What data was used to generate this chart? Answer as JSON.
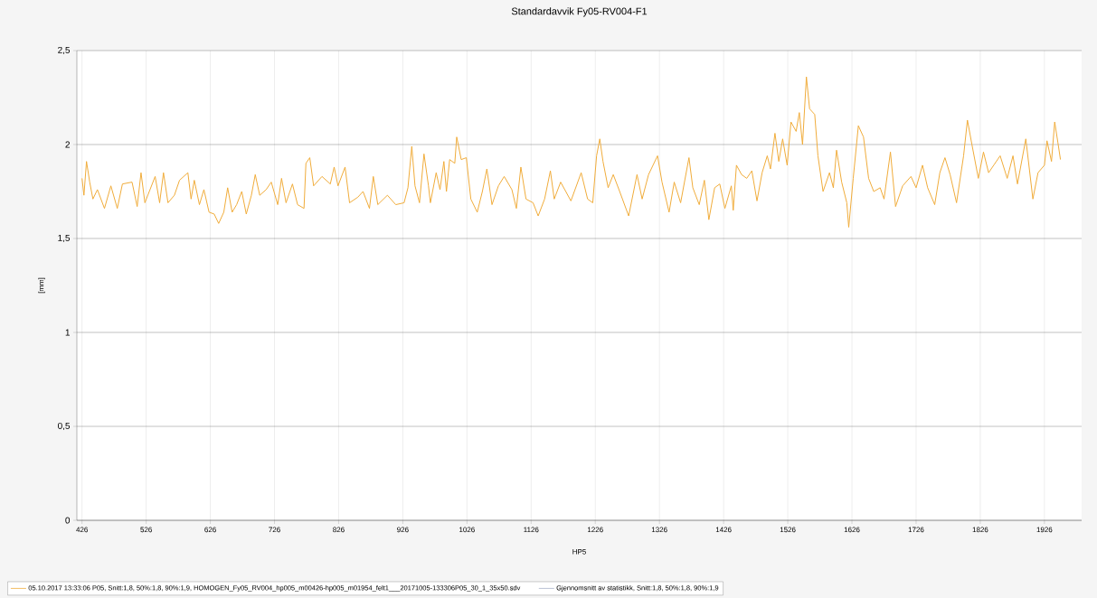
{
  "chart_data": {
    "type": "line",
    "title": "Standardavvik Fy05-RV004-F1",
    "xlabel": "HP5",
    "ylabel": "[mm]",
    "xlim": [
      418,
      1984
    ],
    "ylim": [
      0,
      2.5
    ],
    "xticks": [
      426,
      526,
      626,
      726,
      826,
      926,
      1026,
      1126,
      1226,
      1326,
      1426,
      1526,
      1626,
      1726,
      1826,
      1926
    ],
    "yticks": [
      {
        "value": 0,
        "label": "0"
      },
      {
        "value": 0.5,
        "label": "0,5"
      },
      {
        "value": 1,
        "label": "1"
      },
      {
        "value": 1.5,
        "label": "1,5"
      },
      {
        "value": 2,
        "label": "2"
      },
      {
        "value": 2.5,
        "label": "2,5"
      }
    ],
    "grid": true,
    "legend": "bottom",
    "marker": "none",
    "line_style": "solid",
    "series": [
      {
        "name": "05.10.2017 13:33:06 P05, Snitt:1,8, 50%:1,8, 90%:1,9, HOMOGEN_Fy05_RV004_hp005_m00426-hp005_m01954_felt1___20171005-133306P05_30_1_35x50.sdv",
        "color": "#f0ac3a",
        "x": [
          426,
          429,
          433,
          438,
          443,
          450,
          461,
          471,
          481,
          489,
          504,
          512,
          518,
          524,
          540,
          547,
          553,
          560,
          570,
          578,
          591,
          596,
          601,
          609,
          616,
          624,
          632,
          639,
          647,
          653,
          660,
          667,
          675,
          682,
          690,
          696,
          703,
          713,
          721,
          731,
          737,
          744,
          754,
          762,
          772,
          775,
          781,
          787,
          800,
          813,
          819,
          825,
          836,
          843,
          856,
          864,
          874,
          880,
          887,
          902,
          915,
          928,
          934,
          940,
          945,
          952,
          959,
          966,
          969,
          978,
          984,
          990,
          994,
          999,
          1007,
          1010,
          1017,
          1025,
          1032,
          1042,
          1050,
          1057,
          1065,
          1075,
          1084,
          1096,
          1103,
          1110,
          1118,
          1129,
          1137,
          1147,
          1156,
          1162,
          1172,
          1188,
          1204,
          1214,
          1222,
          1228,
          1233,
          1238,
          1246,
          1254,
          1264,
          1278,
          1291,
          1299,
          1309,
          1323,
          1330,
          1341,
          1349,
          1359,
          1372,
          1378,
          1388,
          1396,
          1403,
          1412,
          1420,
          1428,
          1438,
          1441,
          1446,
          1454,
          1462,
          1470,
          1478,
          1486,
          1494,
          1499,
          1506,
          1512,
          1518,
          1525,
          1531,
          1539,
          1544,
          1549,
          1555,
          1560,
          1568,
          1573,
          1581,
          1591,
          1597,
          1602,
          1610,
          1618,
          1621,
          1628,
          1636,
          1644,
          1652,
          1660,
          1670,
          1676,
          1686,
          1694,
          1705,
          1718,
          1726,
          1736,
          1744,
          1755,
          1763,
          1771,
          1779,
          1789,
          1800,
          1806,
          1813,
          1823,
          1831,
          1839,
          1847,
          1857,
          1868,
          1877,
          1884,
          1897,
          1908,
          1916,
          1926,
          1930,
          1937,
          1942,
          1947,
          1951
        ],
        "values": [
          1.82,
          1.73,
          1.91,
          1.8,
          1.71,
          1.76,
          1.66,
          1.78,
          1.66,
          1.79,
          1.8,
          1.67,
          1.85,
          1.69,
          1.83,
          1.69,
          1.85,
          1.69,
          1.73,
          1.81,
          1.85,
          1.71,
          1.81,
          1.68,
          1.76,
          1.64,
          1.63,
          1.58,
          1.64,
          1.77,
          1.64,
          1.68,
          1.75,
          1.63,
          1.73,
          1.84,
          1.73,
          1.76,
          1.8,
          1.68,
          1.82,
          1.69,
          1.79,
          1.68,
          1.66,
          1.9,
          1.93,
          1.78,
          1.83,
          1.79,
          1.88,
          1.78,
          1.88,
          1.69,
          1.72,
          1.75,
          1.66,
          1.83,
          1.68,
          1.73,
          1.68,
          1.69,
          1.77,
          1.99,
          1.78,
          1.69,
          1.95,
          1.78,
          1.69,
          1.85,
          1.76,
          1.91,
          1.75,
          1.92,
          1.9,
          2.04,
          1.92,
          1.93,
          1.71,
          1.64,
          1.75,
          1.87,
          1.68,
          1.78,
          1.83,
          1.76,
          1.66,
          1.88,
          1.71,
          1.69,
          1.62,
          1.71,
          1.86,
          1.71,
          1.8,
          1.7,
          1.85,
          1.71,
          1.69,
          1.94,
          2.03,
          1.91,
          1.77,
          1.84,
          1.75,
          1.62,
          1.84,
          1.71,
          1.84,
          1.94,
          1.8,
          1.64,
          1.8,
          1.69,
          1.93,
          1.77,
          1.68,
          1.81,
          1.6,
          1.77,
          1.79,
          1.66,
          1.78,
          1.65,
          1.89,
          1.84,
          1.82,
          1.86,
          1.7,
          1.85,
          1.94,
          1.87,
          2.06,
          1.91,
          2.03,
          1.89,
          2.12,
          2.07,
          2.17,
          2.0,
          2.36,
          2.19,
          2.16,
          1.94,
          1.75,
          1.85,
          1.77,
          1.97,
          1.8,
          1.69,
          1.56,
          1.82,
          2.1,
          2.04,
          1.82,
          1.75,
          1.77,
          1.71,
          1.96,
          1.67,
          1.78,
          1.83,
          1.77,
          1.89,
          1.77,
          1.68,
          1.85,
          1.93,
          1.84,
          1.69,
          1.94,
          2.13,
          2.0,
          1.82,
          1.96,
          1.85,
          1.89,
          1.94,
          1.82,
          1.94,
          1.79,
          2.03,
          1.71,
          1.85,
          1.89,
          2.02,
          1.91,
          2.12,
          2.01,
          1.92
        ]
      },
      {
        "name": "Gjennomsnitt av statistikk, Snitt:1,8, 50%:1,8, 90%:1,9",
        "color": "#a9b3c9"
      }
    ]
  }
}
